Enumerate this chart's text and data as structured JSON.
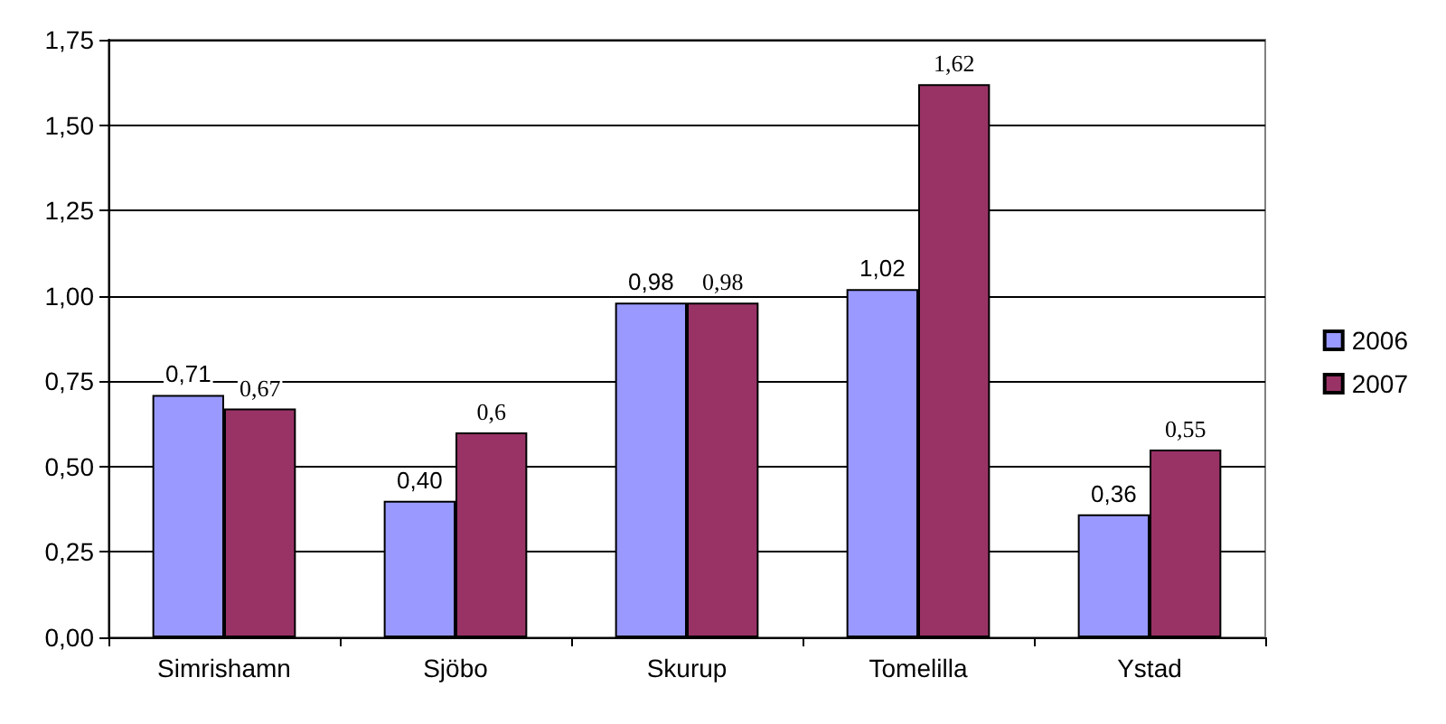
{
  "chart_data": {
    "type": "bar",
    "categories": [
      "Simrishamn",
      "Sjöbo",
      "Skurup",
      "Tomelilla",
      "Ystad"
    ],
    "series": [
      {
        "name": "2006",
        "color": "#9999ff",
        "values": [
          0.71,
          0.4,
          0.98,
          1.02,
          0.36
        ],
        "value_labels": [
          "0,71",
          "0,40",
          "0,98",
          "1,02",
          "0,36"
        ]
      },
      {
        "name": "2007",
        "color": "#993366",
        "values": [
          0.67,
          0.6,
          0.98,
          1.62,
          0.55
        ],
        "value_labels": [
          "0,67",
          "0,6",
          "0,98",
          "1,62",
          "0,55"
        ]
      }
    ],
    "ylim": [
      0,
      1.75
    ],
    "yticks": [
      {
        "value": 0,
        "label": "0,00"
      },
      {
        "value": 0.25,
        "label": "0,25"
      },
      {
        "value": 0.5,
        "label": "0,50"
      },
      {
        "value": 0.75,
        "label": "0,75"
      },
      {
        "value": 1,
        "label": "1,00"
      },
      {
        "value": 1.25,
        "label": "1,25"
      },
      {
        "value": 1.5,
        "label": "1,50"
      },
      {
        "value": 1.75,
        "label": "1,75"
      }
    ],
    "grid": "y",
    "legend": "right"
  }
}
